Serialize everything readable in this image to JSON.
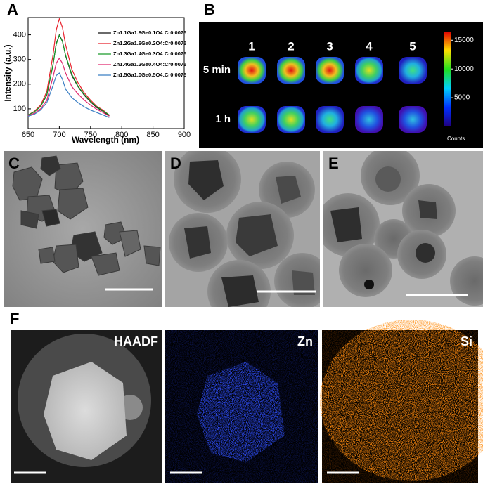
{
  "chart_data": {
    "type": "line",
    "panel_label": "A",
    "x_label": "Wavelength (nm)",
    "y_label": "Intensity (a.u.)",
    "x": [
      650,
      660,
      670,
      680,
      690,
      695,
      700,
      705,
      710,
      720,
      730,
      740,
      750,
      760,
      770,
      780
    ],
    "series": [
      {
        "name": "Zn1.1Ga1.8Ge0.1O4:Cr0.0075",
        "color": "#111111",
        "values": [
          75,
          88,
          110,
          155,
          280,
          365,
          400,
          375,
          315,
          235,
          190,
          155,
          128,
          105,
          90,
          72
        ]
      },
      {
        "name": "Zn1.2Ga1.6Ge0.2O4:Cr0.0075",
        "color": "#e8212b",
        "values": [
          75,
          90,
          115,
          170,
          320,
          420,
          465,
          430,
          360,
          260,
          205,
          165,
          135,
          110,
          95,
          75
        ]
      },
      {
        "name": "Zn1.3Ga1.4Ge0.3O4:Cr0.0075",
        "color": "#1a9b2a",
        "values": [
          75,
          88,
          110,
          158,
          282,
          362,
          398,
          372,
          318,
          240,
          192,
          158,
          130,
          108,
          92,
          75
        ]
      },
      {
        "name": "Zn1.4Ga1.2Ge0.4O4:Cr0.0075",
        "color": "#e0286e",
        "values": [
          72,
          82,
          100,
          135,
          230,
          285,
          305,
          285,
          245,
          190,
          160,
          135,
          115,
          98,
          85,
          70
        ]
      },
      {
        "name": "Zn1.5Ga1.0Ge0.5O4:Cr0.0075",
        "color": "#3b7fc4",
        "values": [
          70,
          78,
          95,
          125,
          195,
          235,
          245,
          220,
          180,
          145,
          125,
          108,
          95,
          85,
          75,
          65
        ]
      }
    ],
    "xlim": [
      650,
      900
    ],
    "xticks": [
      650,
      700,
      750,
      800,
      850,
      900
    ],
    "ylim": [
      20,
      470
    ],
    "yticks": [
      100,
      200,
      300,
      400
    ]
  },
  "panel_b": {
    "label": "B",
    "columns": [
      "1",
      "2",
      "3",
      "4",
      "5"
    ],
    "rows": [
      "5 min",
      "1 h"
    ],
    "colorbar": {
      "lim": [
        0,
        16500
      ],
      "ticks": [
        5000,
        10000,
        15000
      ],
      "label": "Counts"
    }
  },
  "panel_c": {
    "label": "C"
  },
  "panel_d": {
    "label": "D"
  },
  "panel_e": {
    "label": "E"
  },
  "panel_f": {
    "label": "F",
    "maps": [
      "HAADF",
      "Zn",
      "Si"
    ]
  }
}
